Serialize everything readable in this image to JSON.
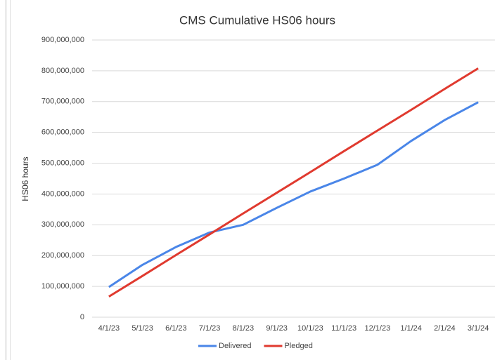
{
  "chart_data": {
    "type": "line",
    "title": "CMS Cumulative HS06 hours",
    "y_label": "HS06 hours",
    "categories": [
      "4/1/23",
      "5/1/23",
      "6/1/23",
      "7/1/23",
      "8/1/23",
      "9/1/23",
      "10/1/23",
      "11/1/23",
      "12/1/23",
      "1/1/24",
      "2/1/24",
      "3/1/24"
    ],
    "series": [
      {
        "name": "Delivered",
        "color": "#4a86e8",
        "values": [
          98000000,
          170000000,
          228000000,
          275000000,
          300000000,
          355000000,
          408000000,
          450000000,
          495000000,
          572000000,
          640000000,
          698000000
        ]
      },
      {
        "name": "Pledged",
        "color": "#e03a2f",
        "values": [
          67000000,
          134000000,
          202000000,
          269000000,
          337000000,
          404000000,
          471000000,
          539000000,
          606000000,
          673000000,
          741000000,
          808000000
        ]
      }
    ],
    "ylim": [
      0,
      900000000
    ],
    "yticks": [
      0,
      {
        "value": 100000000,
        "label": "100,000,000"
      },
      {
        "value": 200000000,
        "label": "200,000,000"
      },
      {
        "value": 300000000,
        "label": "300,000,000"
      },
      {
        "value": 400000000,
        "label": "400,000,000"
      },
      {
        "value": 500000000,
        "label": "500,000,000"
      },
      {
        "value": 600000000,
        "label": "600,000,000"
      },
      {
        "value": 700000000,
        "label": "700,000,000"
      },
      {
        "value": 800000000,
        "label": "800,000,000"
      },
      {
        "value": 900000000,
        "label": "900,000,000"
      }
    ],
    "grid": true,
    "legend": "bottom"
  }
}
